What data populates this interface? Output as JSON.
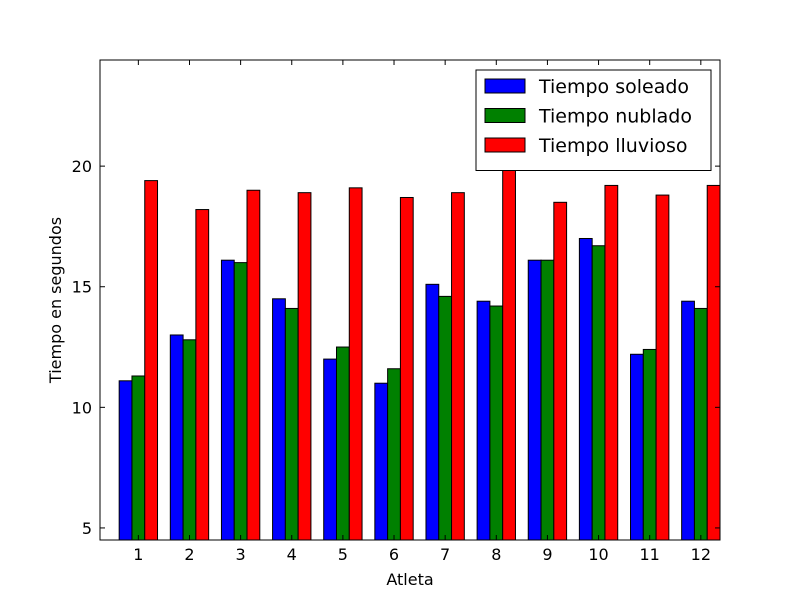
{
  "chart_data": {
    "type": "bar",
    "xlabel": "Atleta",
    "ylabel": "Tiempo en segundos",
    "categories": [
      "1",
      "2",
      "3",
      "4",
      "5",
      "6",
      "7",
      "8",
      "9",
      "10",
      "11",
      "12"
    ],
    "series": [
      {
        "name": "Tiempo soleado",
        "color": "#0000ff",
        "values": [
          11.1,
          13.0,
          16.1,
          14.5,
          12.0,
          11.0,
          15.1,
          14.4,
          16.1,
          17.0,
          12.2,
          14.4
        ]
      },
      {
        "name": "Tiempo nublado",
        "color": "#008000",
        "values": [
          11.3,
          12.8,
          16.0,
          14.1,
          12.5,
          11.6,
          14.6,
          14.2,
          16.1,
          16.7,
          12.4,
          14.1
        ]
      },
      {
        "name": "Tiempo lluvioso",
        "color": "#ff0000",
        "values": [
          19.4,
          18.2,
          19.0,
          18.9,
          19.1,
          18.7,
          18.9,
          19.9,
          18.5,
          19.2,
          18.8,
          19.2
        ]
      }
    ],
    "ylim": [
      4.5,
      24.4
    ],
    "yticks": [
      5,
      10,
      15,
      20
    ],
    "grid": false,
    "legend_position": "top-right"
  }
}
